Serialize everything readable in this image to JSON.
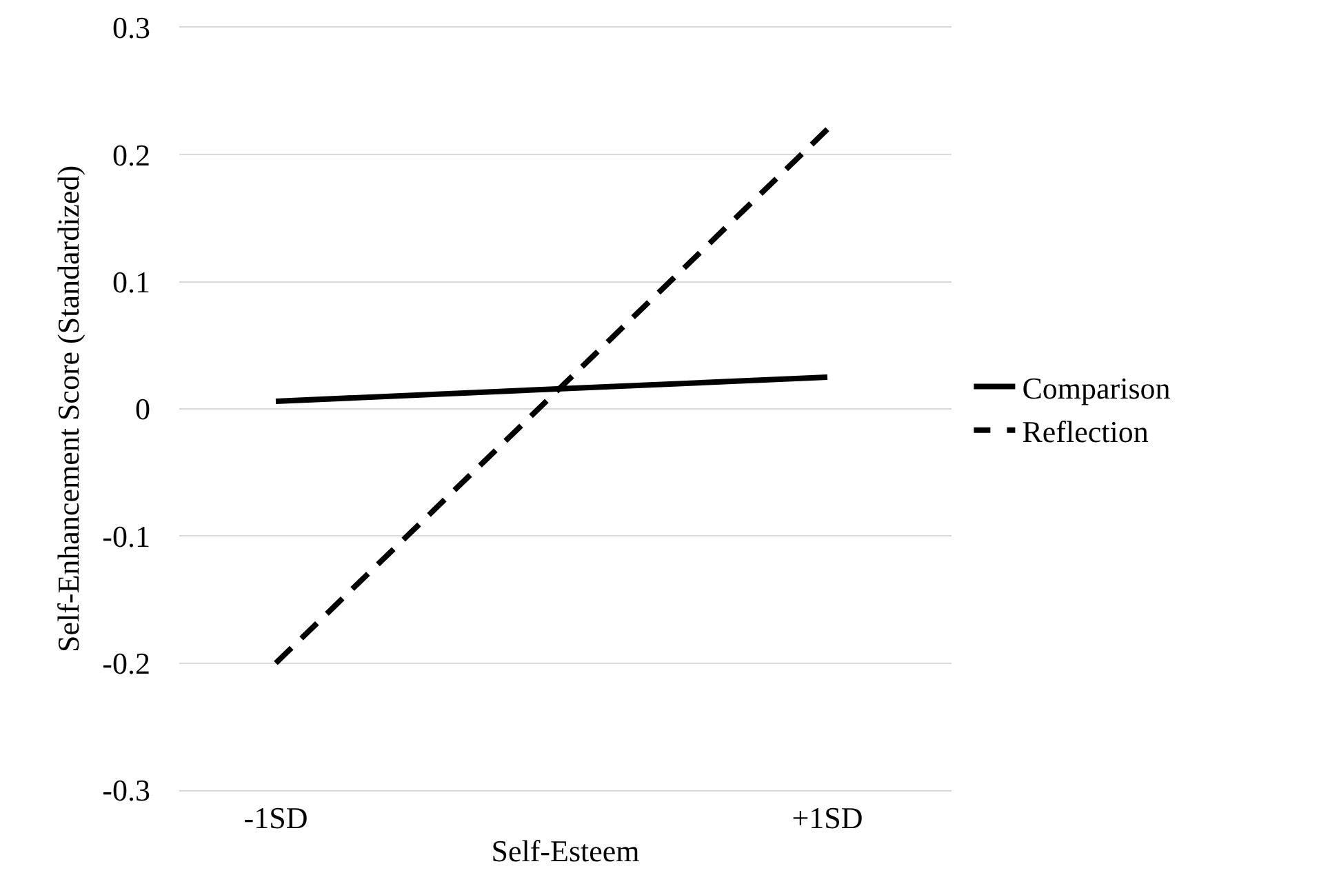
{
  "chart_data": {
    "type": "line",
    "xlabel": "Self-Esteem",
    "ylabel": "Self-Enhancement Score (Standardized)",
    "categories": [
      "-1SD",
      "+1SD"
    ],
    "series": [
      {
        "name": "Comparison",
        "color": "#000000",
        "line_style": "solid",
        "values": [
          0.006,
          0.025
        ]
      },
      {
        "name": "Reflection",
        "color": "#000000",
        "line_style": "dashed",
        "values": [
          -0.2,
          0.22
        ]
      }
    ],
    "ylim": [
      -0.3,
      0.3
    ],
    "yticks": [
      -0.3,
      -0.2,
      -0.1,
      0,
      0.1,
      0.2,
      0.3
    ],
    "grid": "y",
    "legend": "right",
    "marker": "none"
  }
}
